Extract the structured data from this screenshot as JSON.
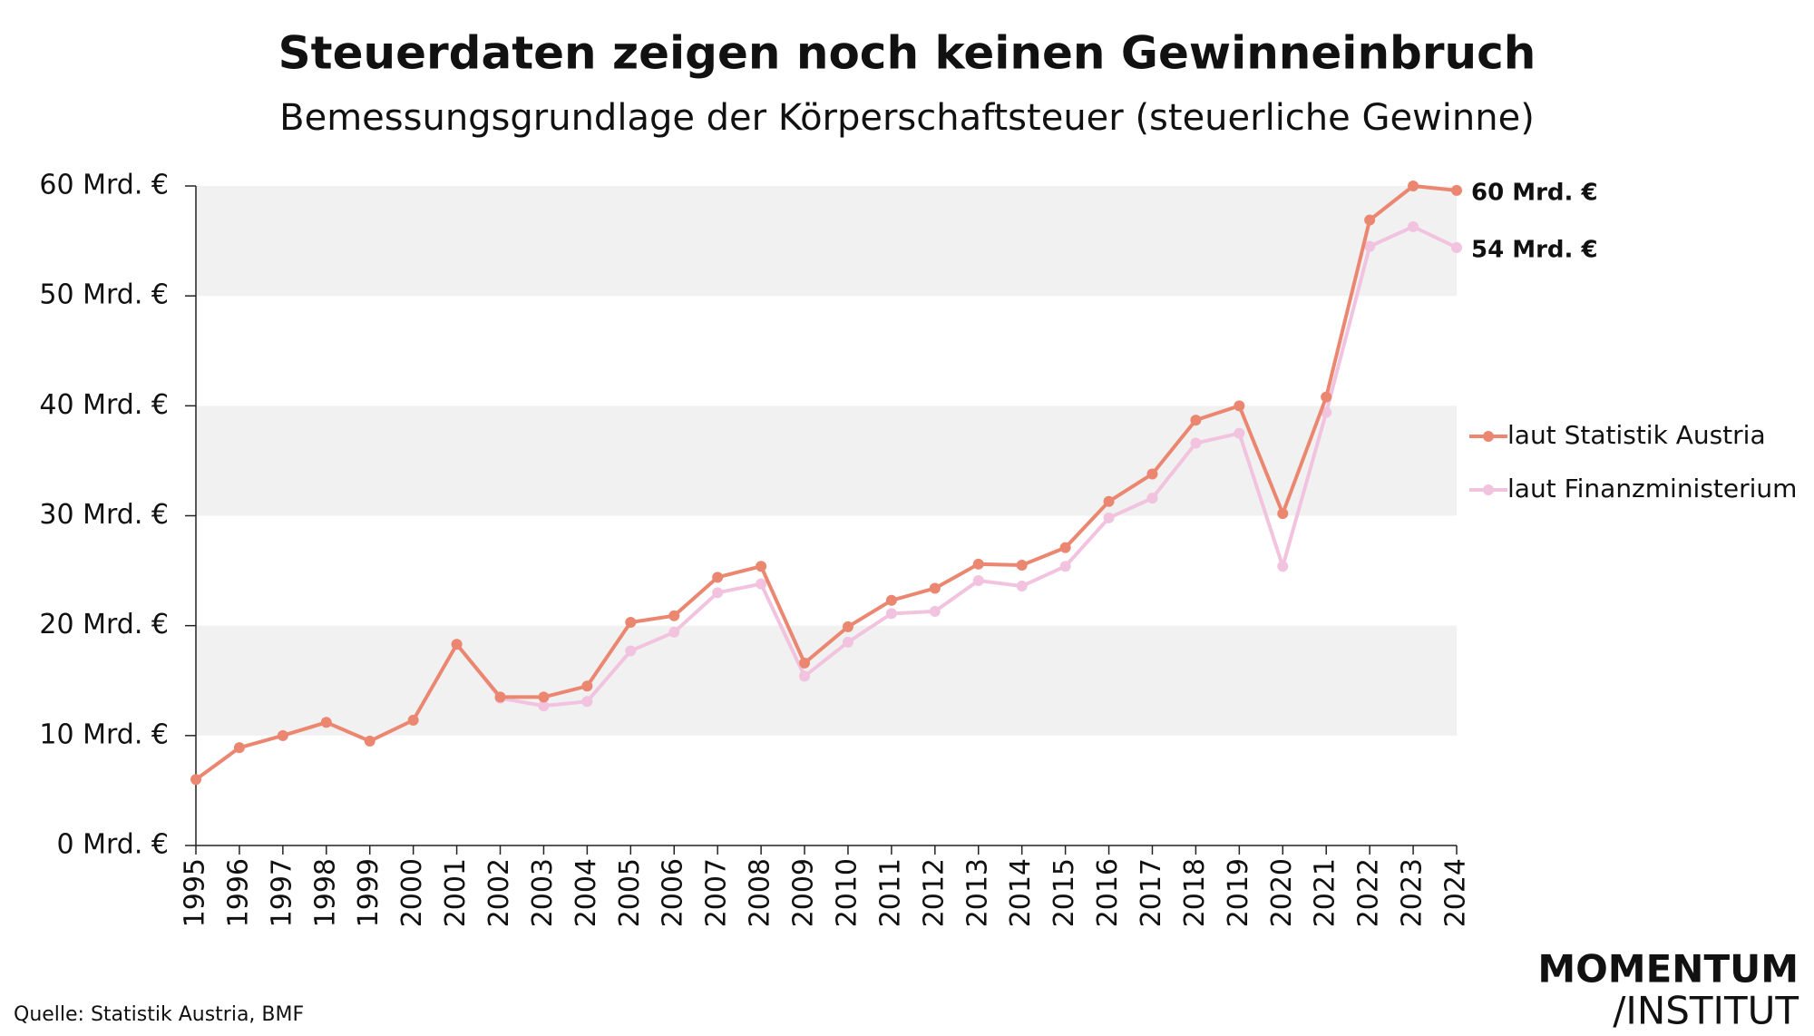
{
  "chart_data": {
    "type": "line",
    "title": "Steuerdaten zeigen noch keinen Gewinneinbruch",
    "subtitle": "Bemessungsgrundlage der Körperschaftsteuer (steuerliche Gewinne)",
    "source": "Quelle: Statistik Austria, BMF",
    "logo": [
      "MOMENTUM",
      "/INSTITUT"
    ],
    "categories": [
      "1995",
      "1996",
      "1997",
      "1998",
      "1999",
      "2000",
      "2001",
      "2002",
      "2003",
      "2004",
      "2005",
      "2006",
      "2007",
      "2008",
      "2009",
      "2010",
      "2011",
      "2012",
      "2013",
      "2014",
      "2015",
      "2016",
      "2017",
      "2018",
      "2019",
      "2020",
      "2021",
      "2022",
      "2023",
      "2024"
    ],
    "series": [
      {
        "name": "laut Statistik Austria",
        "color": "#eb8770",
        "values": [
          6.0,
          8.9,
          10.0,
          11.2,
          9.5,
          11.4,
          18.3,
          13.5,
          13.5,
          14.5,
          20.3,
          20.9,
          24.4,
          25.4,
          16.6,
          19.9,
          22.3,
          23.4,
          25.6,
          25.5,
          27.1,
          31.3,
          33.8,
          38.7,
          40.0,
          30.2,
          40.8,
          56.9,
          60.0,
          59.6
        ],
        "value_labels": [
          null,
          null,
          null,
          null,
          null,
          null,
          null,
          null,
          null,
          null,
          null,
          null,
          null,
          null,
          null,
          null,
          null,
          null,
          null,
          null,
          null,
          null,
          null,
          null,
          null,
          null,
          null,
          null,
          null,
          "60 Mrd. €"
        ]
      },
      {
        "name": "laut Finanzministerium",
        "color": "#f2c3df",
        "values": [
          null,
          null,
          null,
          null,
          null,
          null,
          18.3,
          13.4,
          12.7,
          13.1,
          17.7,
          19.4,
          23.0,
          23.8,
          15.4,
          18.5,
          21.1,
          21.3,
          24.1,
          23.6,
          25.4,
          29.8,
          31.6,
          36.6,
          37.5,
          25.4,
          39.4,
          54.5,
          56.3,
          54.4
        ],
        "value_labels": [
          null,
          null,
          null,
          null,
          null,
          null,
          null,
          null,
          null,
          null,
          null,
          null,
          null,
          null,
          null,
          null,
          null,
          null,
          null,
          null,
          null,
          null,
          null,
          null,
          null,
          null,
          null,
          null,
          null,
          "54 Mrd. €"
        ]
      }
    ],
    "ylim": [
      0,
      60
    ],
    "yticks": [
      {
        "value": 0,
        "label": "0 Mrd. €"
      },
      {
        "value": 10,
        "label": "10 Mrd. €"
      },
      {
        "value": 20,
        "label": "20 Mrd. €"
      },
      {
        "value": 30,
        "label": "30 Mrd. €"
      },
      {
        "value": 40,
        "label": "40 Mrd. €"
      },
      {
        "value": 50,
        "label": "50 Mrd. €"
      },
      {
        "value": 60,
        "label": "60 Mrd. €"
      }
    ],
    "grid": "bands",
    "legend": "right"
  }
}
